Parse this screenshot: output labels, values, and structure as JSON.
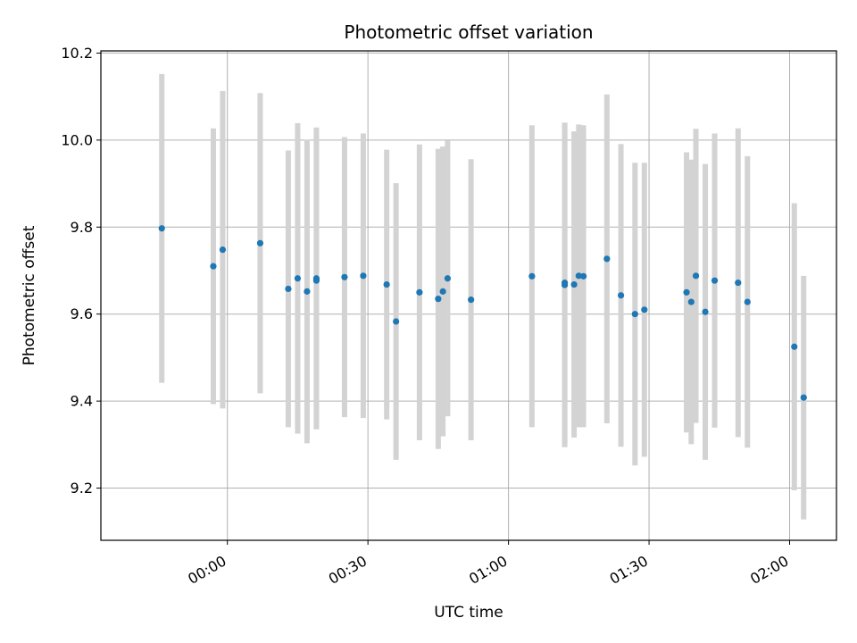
{
  "chart_data": {
    "type": "scatter",
    "title": "Photometric offset variation",
    "xlabel": "UTC time",
    "ylabel": "Photometric offset",
    "xlim": [
      "23:33",
      "02:10"
    ],
    "ylim": [
      9.08,
      10.205
    ],
    "x_ticks": [
      "00:00",
      "00:30",
      "01:00",
      "01:30",
      "02:00"
    ],
    "y_ticks": [
      9.2,
      9.4,
      9.6,
      9.8,
      10.0,
      10.2
    ],
    "y_tick_labels": [
      "9.2",
      "9.4",
      "9.6",
      "9.8",
      "10.0",
      "10.2"
    ],
    "grid": true,
    "colors": {
      "point": "#1f77b4",
      "errorbar": "#d3d3d3",
      "grid": "#b0b0b0"
    },
    "points": [
      {
        "t": "23:46",
        "y": 9.797,
        "err": 0.355
      },
      {
        "t": "23:57",
        "y": 9.71,
        "err": 0.317
      },
      {
        "t": "23:59",
        "y": 9.748,
        "err": 0.365
      },
      {
        "t": "00:07",
        "y": 9.763,
        "err": 0.345
      },
      {
        "t": "00:13",
        "y": 9.658,
        "err": 0.318
      },
      {
        "t": "00:15",
        "y": 9.682,
        "err": 0.357
      },
      {
        "t": "00:17",
        "y": 9.652,
        "err": 0.349
      },
      {
        "t": "00:19",
        "y": 9.677,
        "err": 0.337
      },
      {
        "t": "00:19",
        "y": 9.682,
        "err": 0.347
      },
      {
        "t": "00:25",
        "y": 9.685,
        "err": 0.322
      },
      {
        "t": "00:29",
        "y": 9.688,
        "err": 0.327
      },
      {
        "t": "00:34",
        "y": 9.668,
        "err": 0.31
      },
      {
        "t": "00:36",
        "y": 9.583,
        "err": 0.318
      },
      {
        "t": "00:41",
        "y": 9.65,
        "err": 0.34
      },
      {
        "t": "00:45",
        "y": 9.635,
        "err": 0.345
      },
      {
        "t": "00:46",
        "y": 9.652,
        "err": 0.333
      },
      {
        "t": "00:47",
        "y": 9.682,
        "err": 0.317
      },
      {
        "t": "00:52",
        "y": 9.633,
        "err": 0.323
      },
      {
        "t": "01:05",
        "y": 9.687,
        "err": 0.347
      },
      {
        "t": "01:12",
        "y": 9.667,
        "err": 0.373
      },
      {
        "t": "01:12",
        "y": 9.672,
        "err": 0.368
      },
      {
        "t": "01:14",
        "y": 9.668,
        "err": 0.352
      },
      {
        "t": "01:15",
        "y": 9.688,
        "err": 0.348
      },
      {
        "t": "01:16",
        "y": 9.687,
        "err": 0.347
      },
      {
        "t": "01:21",
        "y": 9.727,
        "err": 0.378
      },
      {
        "t": "01:24",
        "y": 9.643,
        "err": 0.348
      },
      {
        "t": "01:27",
        "y": 9.6,
        "err": 0.348
      },
      {
        "t": "01:29",
        "y": 9.61,
        "err": 0.338
      },
      {
        "t": "01:38",
        "y": 9.65,
        "err": 0.322
      },
      {
        "t": "01:39",
        "y": 9.628,
        "err": 0.327
      },
      {
        "t": "01:40",
        "y": 9.688,
        "err": 0.338
      },
      {
        "t": "01:42",
        "y": 9.605,
        "err": 0.34
      },
      {
        "t": "01:44",
        "y": 9.677,
        "err": 0.338
      },
      {
        "t": "01:49",
        "y": 9.672,
        "err": 0.355
      },
      {
        "t": "01:51",
        "y": 9.628,
        "err": 0.335
      },
      {
        "t": "02:01",
        "y": 9.525,
        "err": 0.33
      },
      {
        "t": "02:03",
        "y": 9.408,
        "err": 0.28
      }
    ]
  }
}
